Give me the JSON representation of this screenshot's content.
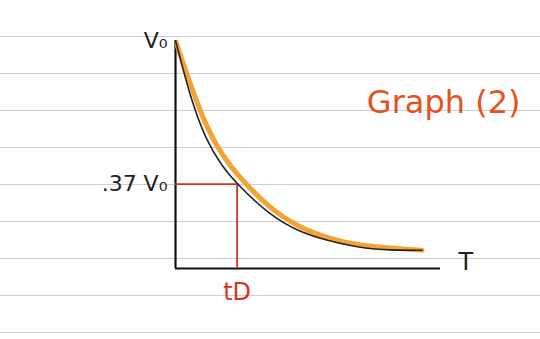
{
  "chart_data": {
    "type": "line",
    "title": "Graph (2)",
    "xlabel": "T",
    "x": [
      0,
      0.25,
      0.5,
      0.75,
      1,
      1.5,
      2,
      2.5,
      3,
      3.5,
      4
    ],
    "series": [
      {
        "color": "#222222",
        "values": [
          1,
          0.74,
          0.56,
          0.45,
          0.37,
          0.24,
          0.16,
          0.12,
          0.09,
          0.08,
          0.08
        ]
      },
      {
        "color": "#f39a1e",
        "values": [
          1,
          0.8,
          0.62,
          0.5,
          0.41,
          0.27,
          0.18,
          0.13,
          0.1,
          0.09,
          0.08
        ]
      }
    ],
    "reference_point": {
      "x": 1,
      "y": 0.37
    },
    "xlim": [
      0,
      4.3
    ],
    "ylim": [
      0,
      1
    ],
    "xticks": [
      {
        "value": 1,
        "label": "tD"
      }
    ],
    "yticks": [
      {
        "value": 1,
        "label": "V₀"
      },
      {
        "value": 0.37,
        "label": ".37 V₀"
      }
    ],
    "grid": false
  }
}
